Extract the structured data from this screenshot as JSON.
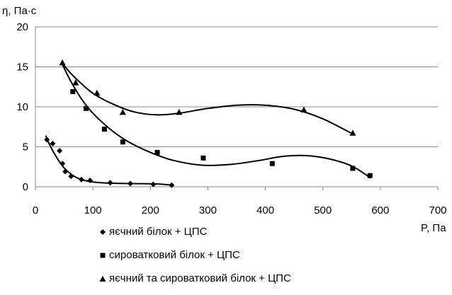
{
  "chart_data": {
    "type": "scatter",
    "xlabel": "P, Па",
    "ylabel": "η, Па·с",
    "xlim": [
      0,
      700
    ],
    "ylim": [
      0,
      20
    ],
    "x_ticks": [
      "0",
      "100",
      "200",
      "300",
      "400",
      "500",
      "600",
      "700"
    ],
    "y_ticks": [
      "0",
      "5",
      "10",
      "15",
      "20"
    ],
    "grid": true,
    "legend_position": "bottom",
    "trendlines": true,
    "series": [
      {
        "name": "яєчний білок + ЦПС",
        "marker": "diamond",
        "points": [
          [
            20,
            5.9
          ],
          [
            30,
            5.4
          ],
          [
            42,
            4.5
          ],
          [
            47,
            2.9
          ],
          [
            52,
            1.9
          ],
          [
            62,
            1.3
          ],
          [
            80,
            0.9
          ],
          [
            95,
            0.8
          ],
          [
            130,
            0.5
          ],
          [
            165,
            0.4
          ],
          [
            205,
            0.3
          ],
          [
            237,
            0.2
          ]
        ],
        "trend": [
          [
            18,
            6.4
          ],
          [
            25,
            5.2
          ],
          [
            35,
            3.9
          ],
          [
            45,
            2.8
          ],
          [
            55,
            2.0
          ],
          [
            70,
            1.2
          ],
          [
            85,
            0.8
          ],
          [
            100,
            0.6
          ],
          [
            130,
            0.45
          ],
          [
            170,
            0.4
          ],
          [
            210,
            0.35
          ],
          [
            240,
            0.2
          ]
        ]
      },
      {
        "name": "сироватковий білок + ЦПС",
        "marker": "square",
        "points": [
          [
            65,
            11.9
          ],
          [
            88,
            9.8
          ],
          [
            120,
            7.2
          ],
          [
            152,
            5.6
          ],
          [
            212,
            4.3
          ],
          [
            292,
            3.6
          ],
          [
            412,
            2.9
          ],
          [
            552,
            2.3
          ],
          [
            582,
            1.4
          ]
        ],
        "trend": [
          [
            45,
            15.6
          ],
          [
            60,
            13.4
          ],
          [
            80,
            11.0
          ],
          [
            100,
            9.2
          ],
          [
            130,
            7.2
          ],
          [
            160,
            5.7
          ],
          [
            200,
            4.3
          ],
          [
            240,
            3.3
          ],
          [
            290,
            2.7
          ],
          [
            340,
            2.8
          ],
          [
            390,
            3.3
          ],
          [
            430,
            3.8
          ],
          [
            470,
            3.9
          ],
          [
            510,
            3.5
          ],
          [
            550,
            2.6
          ],
          [
            583,
            1.1
          ]
        ]
      },
      {
        "name": "яєчний та сироватковий білок + ЦПС",
        "marker": "triangle",
        "points": [
          [
            47,
            15.5
          ],
          [
            70,
            13.0
          ],
          [
            107,
            11.7
          ],
          [
            152,
            9.3
          ],
          [
            250,
            9.3
          ],
          [
            467,
            9.6
          ],
          [
            552,
            6.7
          ]
        ],
        "trend": [
          [
            45,
            15.6
          ],
          [
            60,
            14.3
          ],
          [
            80,
            12.9
          ],
          [
            100,
            11.7
          ],
          [
            130,
            10.5
          ],
          [
            170,
            9.4
          ],
          [
            210,
            9.0
          ],
          [
            250,
            9.2
          ],
          [
            300,
            9.8
          ],
          [
            350,
            10.2
          ],
          [
            400,
            10.2
          ],
          [
            450,
            9.7
          ],
          [
            500,
            8.5
          ],
          [
            552,
            6.6
          ]
        ]
      }
    ]
  }
}
